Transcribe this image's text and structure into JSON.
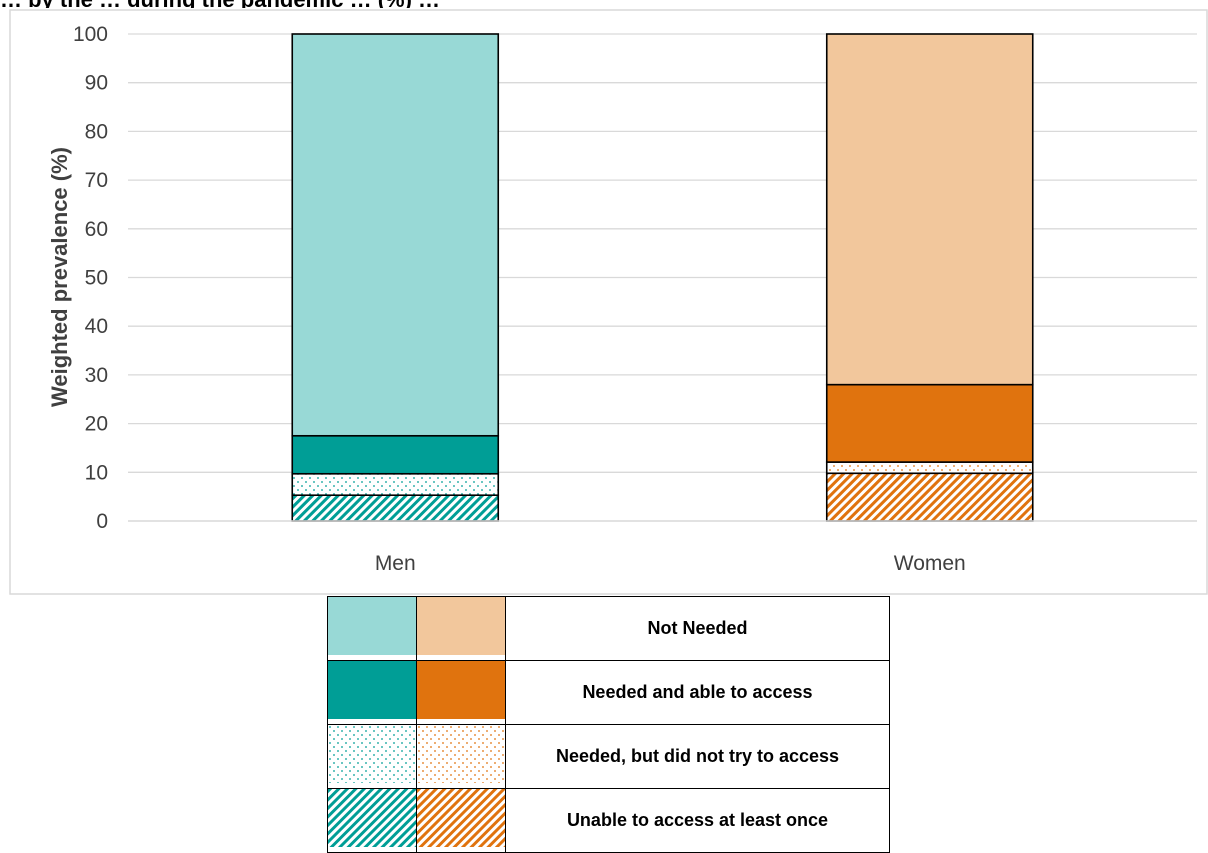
{
  "title": "… by the … during the pandemic … (%) …",
  "chart_data": {
    "type": "bar",
    "stacked": true,
    "categories": [
      "Men",
      "Women"
    ],
    "ylabel": "Weighted prevalence (%)",
    "ylim": [
      0,
      100
    ],
    "yticks": [
      0,
      10,
      20,
      30,
      40,
      50,
      60,
      70,
      80,
      90,
      100
    ],
    "grid": true,
    "legend_position": "bottom",
    "series": [
      {
        "name": "Unable to access at least once",
        "values": [
          5.3,
          9.8
        ]
      },
      {
        "name": "Needed, but did not try to access",
        "values": [
          4.4,
          2.3
        ]
      },
      {
        "name": "Needed and able to access",
        "values": [
          7.8,
          15.9
        ]
      },
      {
        "name": "Not Needed",
        "values": [
          82.5,
          72.0
        ]
      }
    ],
    "colors": {
      "men": [
        "#009e96",
        "#009e96",
        "#009e96",
        "#98d9d6"
      ],
      "women": [
        "#e0730e",
        "#e0730e",
        "#e0730e",
        "#f2c79c"
      ]
    },
    "patterns": [
      "diagonal-hatch",
      "dots",
      "solid",
      "solid"
    ]
  },
  "legend": {
    "rows": [
      {
        "label": "Not Needed"
      },
      {
        "label": "Needed and able to access"
      },
      {
        "label": "Needed, but did not try to access"
      },
      {
        "label": "Unable to access at least once"
      }
    ]
  }
}
